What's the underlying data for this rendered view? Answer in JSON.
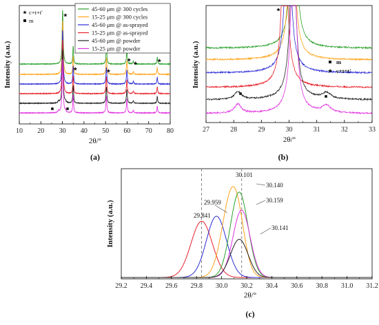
{
  "chart_data": [
    {
      "id": "a",
      "type": "line",
      "label": "(a)",
      "xlabel": "2θ/°",
      "ylabel": "Intensity (a.u.)",
      "xlim": [
        10,
        80
      ],
      "xticks": [
        10,
        20,
        30,
        40,
        50,
        60,
        70,
        80
      ],
      "series": [
        {
          "name": "45-60 μm @ 300 cycles",
          "color": "#2ca02c"
        },
        {
          "name": "15-25 μm @ 300 cycles",
          "color": "#ffa31a"
        },
        {
          "name": "45-60 μm @ as-sprayed",
          "color": "#2b2bd6"
        },
        {
          "name": "15-25 μm @ as-sprayed",
          "color": "#e8202a"
        },
        {
          "name": "45-60 μm @ powder",
          "color": "#222222"
        },
        {
          "name": "15-25 μm @ powder",
          "color": "#e033e0"
        }
      ],
      "peaks_c_t": [
        30.1,
        35.0,
        50.4,
        59.9,
        62.9,
        74.0
      ],
      "peaks_m": [
        28.2,
        31.4
      ],
      "legend": [
        {
          "symbol": "★",
          "text": "c+t+t'"
        },
        {
          "symbol": "■",
          "text": "m"
        }
      ]
    },
    {
      "id": "b",
      "type": "line",
      "label": "(b)",
      "xlabel": "2θ/°",
      "ylabel": "Intensity (a.u.)",
      "xlim": [
        27,
        33
      ],
      "xticks": [
        27,
        28,
        29,
        30,
        31,
        32,
        33
      ],
      "legend": [
        {
          "symbol": "■",
          "text": "m"
        },
        {
          "symbol": "★",
          "text": "c+t+t'"
        }
      ]
    },
    {
      "id": "c",
      "type": "line",
      "label": "(c)",
      "xlabel": "2θ/°",
      "ylabel": "Intensity (a.u.)",
      "xlim": [
        29.2,
        31.2
      ],
      "xticks": [
        29.2,
        29.4,
        29.6,
        29.8,
        30.0,
        30.2,
        30.4,
        30.6,
        30.8,
        31.0,
        31.2
      ],
      "xtick_labels": [
        "29.2",
        "29.4",
        "29.6",
        "29.8",
        "30.0",
        "30.2",
        "30.4",
        "30.6",
        "30.8",
        "31.0",
        "31.2"
      ],
      "dashed_lines": [
        29.84,
        30.16
      ],
      "peaks": [
        {
          "label": "29.841",
          "x": 29.841,
          "height": 0.56,
          "color": "#e8202a"
        },
        {
          "label": "29.959",
          "x": 29.959,
          "height": 0.61,
          "color": "#2b2bd6"
        },
        {
          "label": "30.101",
          "x": 30.101,
          "height": 0.92,
          "color": "#ffa31a"
        },
        {
          "label": "30.140",
          "x": 30.14,
          "height": 0.85,
          "color": "#2ca02c"
        },
        {
          "label": "30.159",
          "x": 30.159,
          "height": 0.67,
          "color": "#e033e0"
        },
        {
          "label": "30.141",
          "x": 30.141,
          "height": 0.38,
          "color": "#222222"
        }
      ]
    }
  ]
}
